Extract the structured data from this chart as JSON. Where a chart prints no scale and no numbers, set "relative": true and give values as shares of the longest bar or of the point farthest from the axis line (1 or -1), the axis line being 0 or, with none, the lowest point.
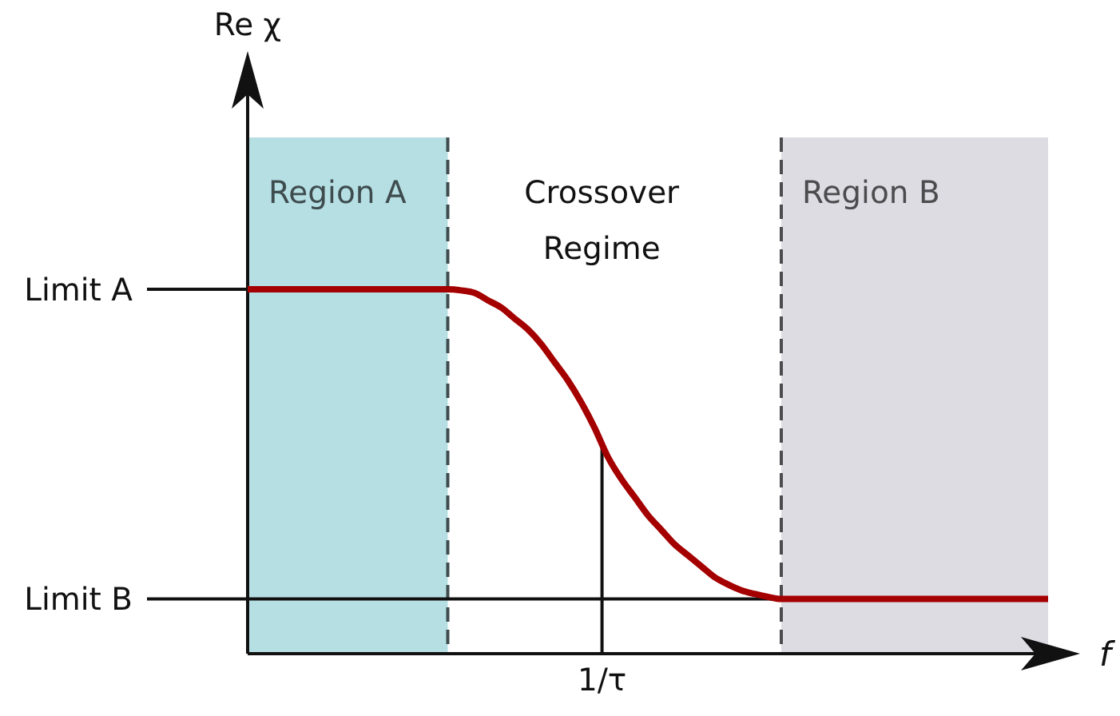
{
  "chart_data": {
    "type": "line",
    "relative": true,
    "xlabel": "f",
    "categories": [
      null,
      null,
      null,
      null,
      null,
      null,
      null,
      null,
      null,
      null,
      null,
      null,
      null,
      null,
      null,
      null,
      null,
      null,
      null,
      null,
      null,
      null,
      null,
      null,
      null,
      null,
      null,
      null,
      null,
      null,
      null,
      null,
      null,
      null,
      null,
      null,
      null,
      null,
      null,
      null,
      null,
      null,
      null,
      null,
      null,
      null,
      null,
      null,
      null,
      null,
      null,
      null,
      null,
      null,
      null,
      null,
      null,
      null,
      null,
      null,
      null
    ],
    "series": [
      {
        "color": "#a40000",
        "values": [
          1,
          1,
          1,
          1,
          1,
          1,
          1,
          1,
          1,
          1,
          1,
          1,
          1,
          1,
          1,
          1,
          0.997,
          0.99,
          0.97,
          0.95,
          0.92,
          0.89,
          0.85,
          0.8,
          0.75,
          0.69,
          0.62,
          0.54,
          0.48,
          0.43,
          0.38,
          0.34,
          0.3,
          0.27,
          0.24,
          0.21,
          0.19,
          0.174,
          0.164,
          0.156,
          0.15,
          0.15,
          0.15,
          0.15,
          0.15,
          0.15,
          0.15,
          0.15,
          0.15,
          0.15,
          0.15,
          0.15,
          0.15,
          0.15,
          0.15,
          0.15,
          0.15,
          0.15,
          0.15,
          0.15,
          0.15
        ]
      }
    ],
    "ref_lines": [
      {
        "axis": "y",
        "value": 1,
        "label": "Limit A"
      },
      {
        "axis": "y",
        "value": 0.15,
        "label": "Limit B"
      }
    ],
    "annotations": [
      "Re χ",
      "Region A",
      "Crossover Regime",
      "Region B",
      "1/τ"
    ]
  }
}
